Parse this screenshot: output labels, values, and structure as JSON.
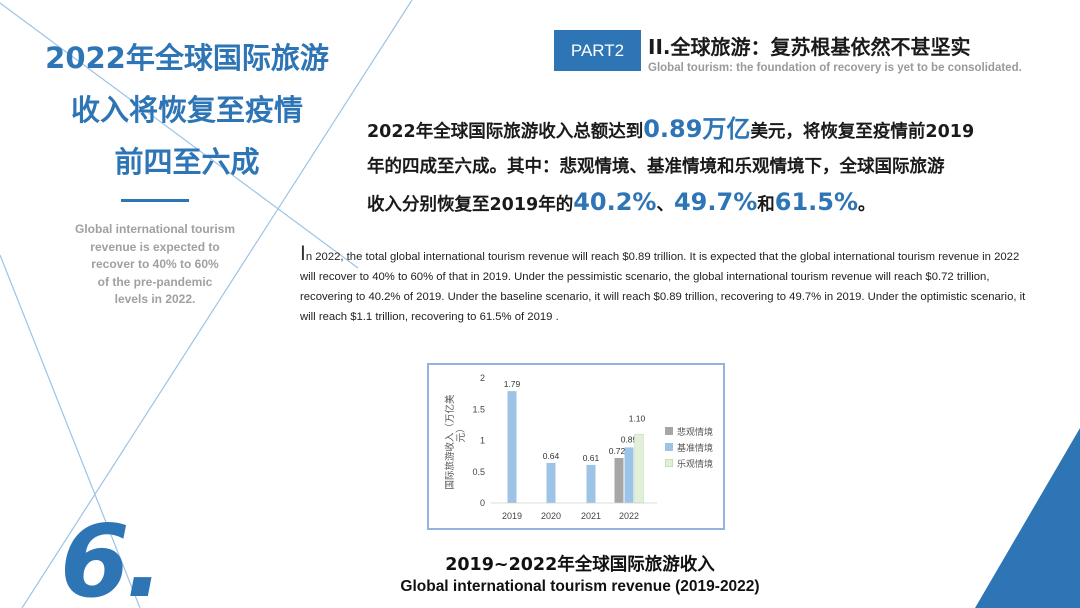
{
  "left": {
    "title_lines": [
      "2022年全球国际旅游",
      "收入将恢复至疫情",
      "前四至六成"
    ],
    "subtitle_lines": [
      "Global international tourism",
      "revenue is expected to",
      "recover to 40% to 60%",
      "of the pre-pandemic",
      "levels in 2022."
    ],
    "section_number": "6."
  },
  "header": {
    "part_label": "PART2",
    "title": "II.全球旅游：复苏根基依然不甚坚实",
    "subtitle": "Global tourism: the foundation of recovery is yet to be consolidated."
  },
  "summary": {
    "s1": "2022年全球国际旅游收入总额达到",
    "h1": "0.89万亿",
    "s2": "美元，将恢复至疫情前2019",
    "s3": "年的四成至六成。其中：悲观情境、基准情境和乐观情境下，全球国际旅游",
    "s4": "收入分别恢复至2019年的",
    "h2": "40.2%",
    "s5": "、",
    "h3": "49.7%",
    "s6": "和",
    "h4": "61.5%",
    "s7": "。"
  },
  "english": {
    "first_letter": "I",
    "text": "n 2022, the total global international tourism revenue will reach $0.89 trillion. It is expected that the global international tourism revenue in 2022 will recover to 40% to 60% of that in 2019. Under the pessimistic scenario, the global international tourism revenue will reach $0.72 trillion, recovering to 40.2% of 2019. Under the baseline scenario, it will reach $0.89 trillion, recovering to 49.7% in 2019. Under the optimistic scenario, it will reach $1.1 trillion, recovering to 61.5% of 2019 ."
  },
  "chart_data": {
    "type": "bar",
    "title": "2019~2022年全球国际旅游收入",
    "subtitle": "Global international tourism revenue (2019-2022)",
    "ylabel_line1": "国际旅游收入（万亿美",
    "ylabel_line2": "元）",
    "xlabel": "",
    "ylim": [
      0,
      2
    ],
    "yticks": [
      0,
      0.5,
      1,
      1.5,
      2
    ],
    "ytick_labels": [
      "0",
      "0.5",
      "1",
      "1.5",
      "2"
    ],
    "categories": [
      "2019",
      "2020",
      "2021",
      "2022"
    ],
    "bars": [
      {
        "category": "2019",
        "value": 1.79,
        "label": "1.79",
        "series": "基准情境"
      },
      {
        "category": "2020",
        "value": 0.64,
        "label": "0.64",
        "series": "基准情境"
      },
      {
        "category": "2021",
        "value": 0.61,
        "label": "0.61",
        "series": "基准情境"
      },
      {
        "category": "2022",
        "value": 0.72,
        "label": "0.72",
        "series": "悲观情境"
      },
      {
        "category": "2022",
        "value": 0.89,
        "label": "0.89",
        "series": "基准情境"
      },
      {
        "category": "2022",
        "value": 1.1,
        "label": "1.10",
        "series": "乐观情境"
      }
    ],
    "legend": [
      {
        "name": "悲观情境",
        "color": "#a6a6a6"
      },
      {
        "name": "基准情境",
        "color": "#9dc3e6"
      },
      {
        "name": "乐观情境",
        "color": "#e2f0d9"
      }
    ]
  },
  "colors": {
    "accent": "#2e75b6",
    "grey_text": "#a0a0a0"
  }
}
